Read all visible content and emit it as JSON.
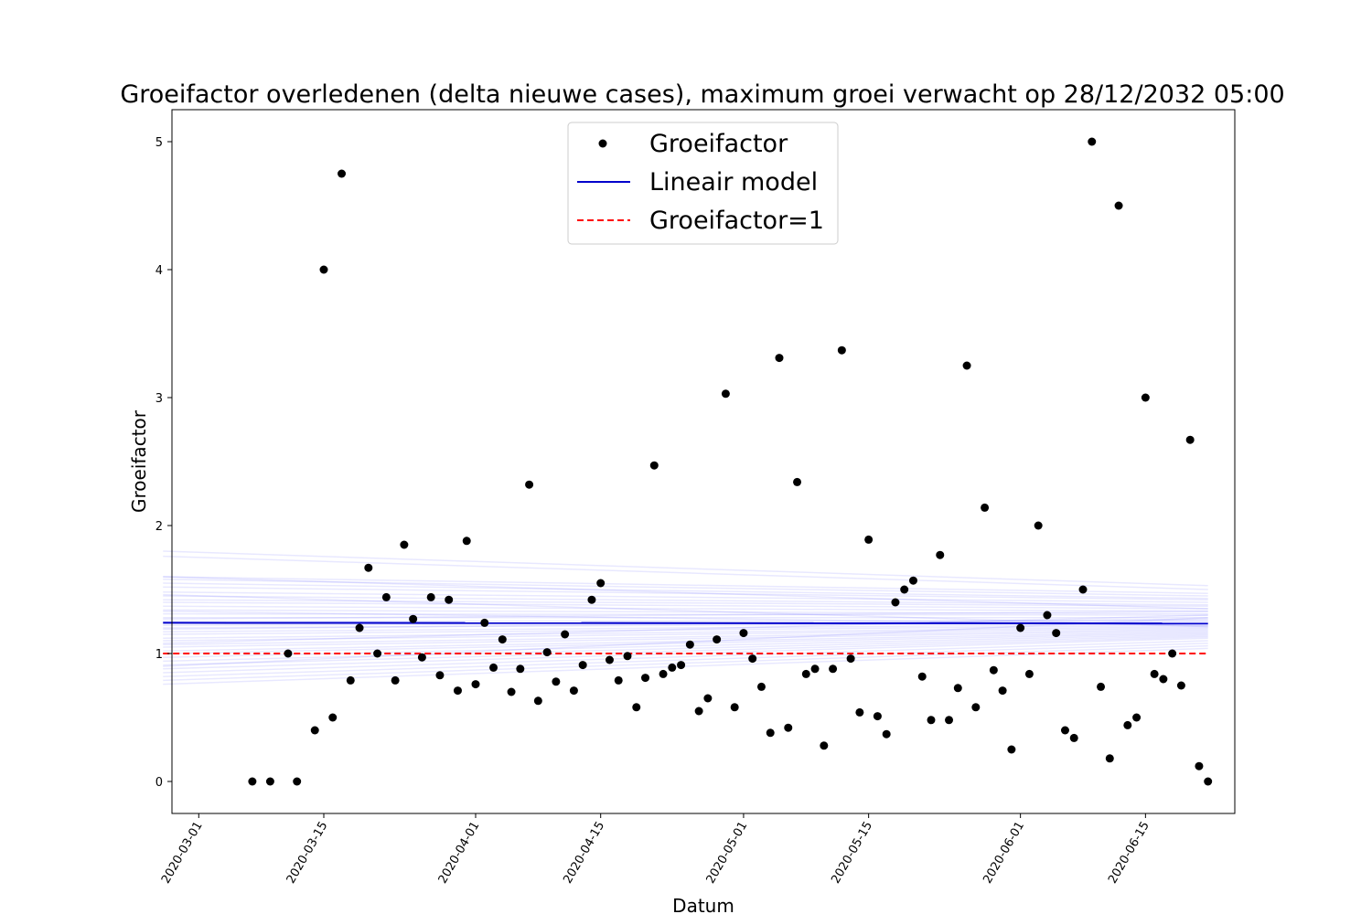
{
  "chart_data": {
    "type": "scatter",
    "title": "Groeifactor overledenen (delta nieuwe cases), maximum groei verwacht op 28/12/2032 05:00",
    "xlabel": "Datum",
    "ylabel": "Groeifactor",
    "xlim": [
      "2020-02-27",
      "2020-06-25"
    ],
    "ylim": [
      -0.25,
      5.25
    ],
    "x_ticks": [
      "2020-03-01",
      "2020-03-15",
      "2020-04-01",
      "2020-04-15",
      "2020-05-01",
      "2020-05-15",
      "2020-06-01",
      "2020-06-15"
    ],
    "y_ticks": [
      "0",
      "1",
      "2",
      "3",
      "4",
      "5"
    ],
    "legend_position": "top-center",
    "series": [
      {
        "name": "Groeifactor",
        "kind": "points",
        "color": "#000000",
        "points": [
          [
            "2020-03-07",
            0
          ],
          [
            "2020-03-09",
            0
          ],
          [
            "2020-03-11",
            1.0
          ],
          [
            "2020-03-12",
            0
          ],
          [
            "2020-03-14",
            0.4
          ],
          [
            "2020-03-15",
            4.0
          ],
          [
            "2020-03-16",
            0.5
          ],
          [
            "2020-03-17",
            4.75
          ],
          [
            "2020-03-18",
            0.79
          ],
          [
            "2020-03-19",
            1.2
          ],
          [
            "2020-03-20",
            1.67
          ],
          [
            "2020-03-21",
            1.0
          ],
          [
            "2020-03-22",
            1.44
          ],
          [
            "2020-03-23",
            0.79
          ],
          [
            "2020-03-24",
            1.85
          ],
          [
            "2020-03-25",
            1.27
          ],
          [
            "2020-03-26",
            0.97
          ],
          [
            "2020-03-27",
            1.44
          ],
          [
            "2020-03-28",
            0.83
          ],
          [
            "2020-03-29",
            1.42
          ],
          [
            "2020-03-30",
            0.71
          ],
          [
            "2020-03-31",
            1.88
          ],
          [
            "2020-04-01",
            0.76
          ],
          [
            "2020-04-02",
            1.24
          ],
          [
            "2020-04-03",
            0.89
          ],
          [
            "2020-04-04",
            1.11
          ],
          [
            "2020-04-05",
            0.7
          ],
          [
            "2020-04-06",
            0.88
          ],
          [
            "2020-04-07",
            2.32
          ],
          [
            "2020-04-08",
            0.63
          ],
          [
            "2020-04-09",
            1.01
          ],
          [
            "2020-04-10",
            0.78
          ],
          [
            "2020-04-11",
            1.15
          ],
          [
            "2020-04-12",
            0.71
          ],
          [
            "2020-04-13",
            0.91
          ],
          [
            "2020-04-14",
            1.42
          ],
          [
            "2020-04-15",
            1.55
          ],
          [
            "2020-04-16",
            0.95
          ],
          [
            "2020-04-17",
            0.79
          ],
          [
            "2020-04-18",
            0.98
          ],
          [
            "2020-04-19",
            0.58
          ],
          [
            "2020-04-20",
            0.81
          ],
          [
            "2020-04-21",
            2.47
          ],
          [
            "2020-04-22",
            0.84
          ],
          [
            "2020-04-23",
            0.89
          ],
          [
            "2020-04-24",
            0.91
          ],
          [
            "2020-04-25",
            1.07
          ],
          [
            "2020-04-26",
            0.55
          ],
          [
            "2020-04-27",
            0.65
          ],
          [
            "2020-04-28",
            1.11
          ],
          [
            "2020-04-29",
            3.03
          ],
          [
            "2020-04-30",
            0.58
          ],
          [
            "2020-05-01",
            1.16
          ],
          [
            "2020-05-02",
            0.96
          ],
          [
            "2020-05-03",
            0.74
          ],
          [
            "2020-05-04",
            0.38
          ],
          [
            "2020-05-05",
            3.31
          ],
          [
            "2020-05-06",
            0.42
          ],
          [
            "2020-05-07",
            2.34
          ],
          [
            "2020-05-08",
            0.84
          ],
          [
            "2020-05-09",
            0.88
          ],
          [
            "2020-05-10",
            0.28
          ],
          [
            "2020-05-11",
            0.88
          ],
          [
            "2020-05-12",
            3.37
          ],
          [
            "2020-05-13",
            0.96
          ],
          [
            "2020-05-14",
            0.54
          ],
          [
            "2020-05-15",
            1.89
          ],
          [
            "2020-05-16",
            0.51
          ],
          [
            "2020-05-17",
            0.37
          ],
          [
            "2020-05-18",
            1.4
          ],
          [
            "2020-05-19",
            1.5
          ],
          [
            "2020-05-20",
            1.57
          ],
          [
            "2020-05-21",
            0.82
          ],
          [
            "2020-05-22",
            0.48
          ],
          [
            "2020-05-23",
            1.77
          ],
          [
            "2020-05-24",
            0.48
          ],
          [
            "2020-05-25",
            0.73
          ],
          [
            "2020-05-26",
            3.25
          ],
          [
            "2020-05-27",
            0.58
          ],
          [
            "2020-05-28",
            2.14
          ],
          [
            "2020-05-29",
            0.87
          ],
          [
            "2020-05-30",
            0.71
          ],
          [
            "2020-05-31",
            0.25
          ],
          [
            "2020-06-01",
            1.2
          ],
          [
            "2020-06-02",
            0.84
          ],
          [
            "2020-06-03",
            2.0
          ],
          [
            "2020-06-04",
            1.3
          ],
          [
            "2020-06-05",
            1.16
          ],
          [
            "2020-06-06",
            0.4
          ],
          [
            "2020-06-07",
            0.34
          ],
          [
            "2020-06-08",
            1.5
          ],
          [
            "2020-06-09",
            5.0
          ],
          [
            "2020-06-10",
            0.74
          ],
          [
            "2020-06-11",
            0.18
          ],
          [
            "2020-06-12",
            4.5
          ],
          [
            "2020-06-13",
            0.44
          ],
          [
            "2020-06-14",
            0.5
          ],
          [
            "2020-06-15",
            3.0
          ],
          [
            "2020-06-16",
            0.84
          ],
          [
            "2020-06-17",
            0.8
          ],
          [
            "2020-06-18",
            1.0
          ],
          [
            "2020-06-19",
            0.75
          ],
          [
            "2020-06-20",
            2.67
          ],
          [
            "2020-06-21",
            0.12
          ],
          [
            "2020-06-22",
            0
          ]
        ]
      },
      {
        "name": "Lineair model",
        "kind": "line",
        "color": "#0000cc",
        "points": [
          [
            "2020-02-26",
            1.24
          ],
          [
            "2020-06-22",
            1.235
          ]
        ]
      },
      {
        "name": "Groeifactor=1",
        "kind": "dashed-line",
        "color": "#ff0000",
        "points": [
          [
            "2020-02-26",
            1.0
          ],
          [
            "2020-06-22",
            1.0
          ]
        ]
      }
    ],
    "uncertainty_lines": {
      "color": "#0000ff",
      "x": [
        "2020-02-26",
        "2020-06-22"
      ],
      "lines": [
        [
          1.8,
          1.53
        ],
        [
          1.76,
          1.5
        ],
        [
          1.6,
          1.47
        ],
        [
          1.58,
          1.45
        ],
        [
          1.55,
          1.43
        ],
        [
          1.52,
          1.42
        ],
        [
          1.48,
          1.4
        ],
        [
          1.45,
          1.38
        ],
        [
          1.42,
          1.37
        ],
        [
          1.4,
          1.35
        ],
        [
          1.37,
          1.33
        ],
        [
          1.34,
          1.31
        ],
        [
          1.31,
          1.3
        ],
        [
          1.28,
          1.28
        ],
        [
          1.25,
          1.26
        ],
        [
          1.22,
          1.25
        ],
        [
          1.2,
          1.24
        ],
        [
          1.17,
          1.23
        ],
        [
          1.15,
          1.22
        ],
        [
          1.12,
          1.21
        ],
        [
          1.1,
          1.2
        ],
        [
          1.07,
          1.19
        ],
        [
          1.05,
          1.18
        ],
        [
          1.02,
          1.17
        ],
        [
          1.0,
          1.16
        ],
        [
          0.97,
          1.15
        ],
        [
          0.94,
          1.14
        ],
        [
          0.91,
          1.13
        ],
        [
          0.88,
          1.12
        ],
        [
          0.85,
          1.1
        ],
        [
          0.82,
          1.08
        ],
        [
          0.79,
          1.06
        ],
        [
          0.76,
          1.04
        ],
        [
          1.33,
          1.22
        ],
        [
          1.27,
          1.33
        ],
        [
          1.19,
          1.27
        ],
        [
          1.6,
          1.35
        ],
        [
          0.9,
          1.28
        ],
        [
          1.46,
          1.21
        ],
        [
          1.08,
          1.3
        ]
      ]
    }
  }
}
